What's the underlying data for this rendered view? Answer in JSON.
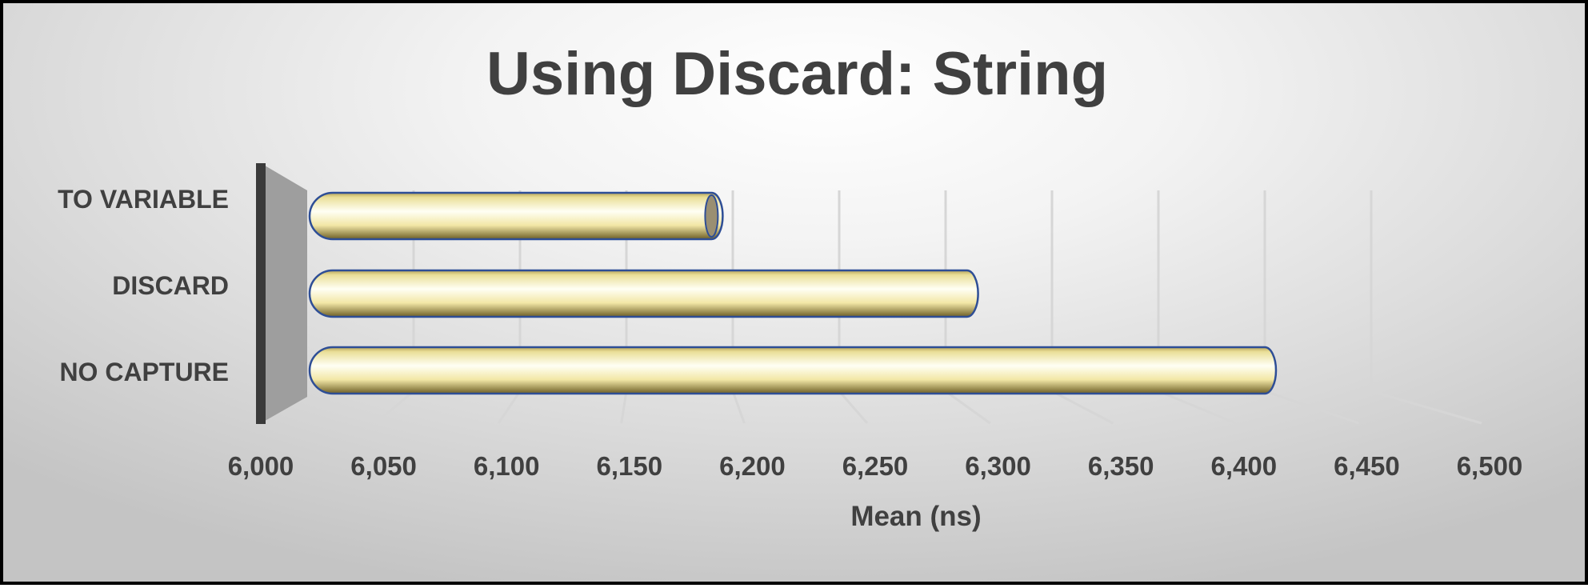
{
  "chart_data": {
    "type": "bar",
    "orientation": "horizontal",
    "style": "3d-cylinder",
    "title": "Using Discard: String",
    "xlabel": "Mean (ns)",
    "ylabel": "",
    "categories": [
      "TO VARIABLE",
      "DISCARD",
      "NO CAPTURE"
    ],
    "values": [
      6190,
      6310,
      6450
    ],
    "xlim": [
      6000,
      6500
    ],
    "xticks": [
      "6,000",
      "6,050",
      "6,100",
      "6,150",
      "6,200",
      "6,250",
      "6,300",
      "6,350",
      "6,400",
      "6,450",
      "6,500"
    ],
    "grid": true,
    "legend": "none",
    "colors": {
      "bar_light": "#fffbe6",
      "bar_mid": "#f5ec9e",
      "bar_dark": "#7a6a2a",
      "bar_edge": "#2e4e96",
      "end_cap": "#9a8f72",
      "wall": "#9e9e9e",
      "axis": "#3a3a3a",
      "grid": "#d6d6d6",
      "text": "#404040"
    }
  }
}
